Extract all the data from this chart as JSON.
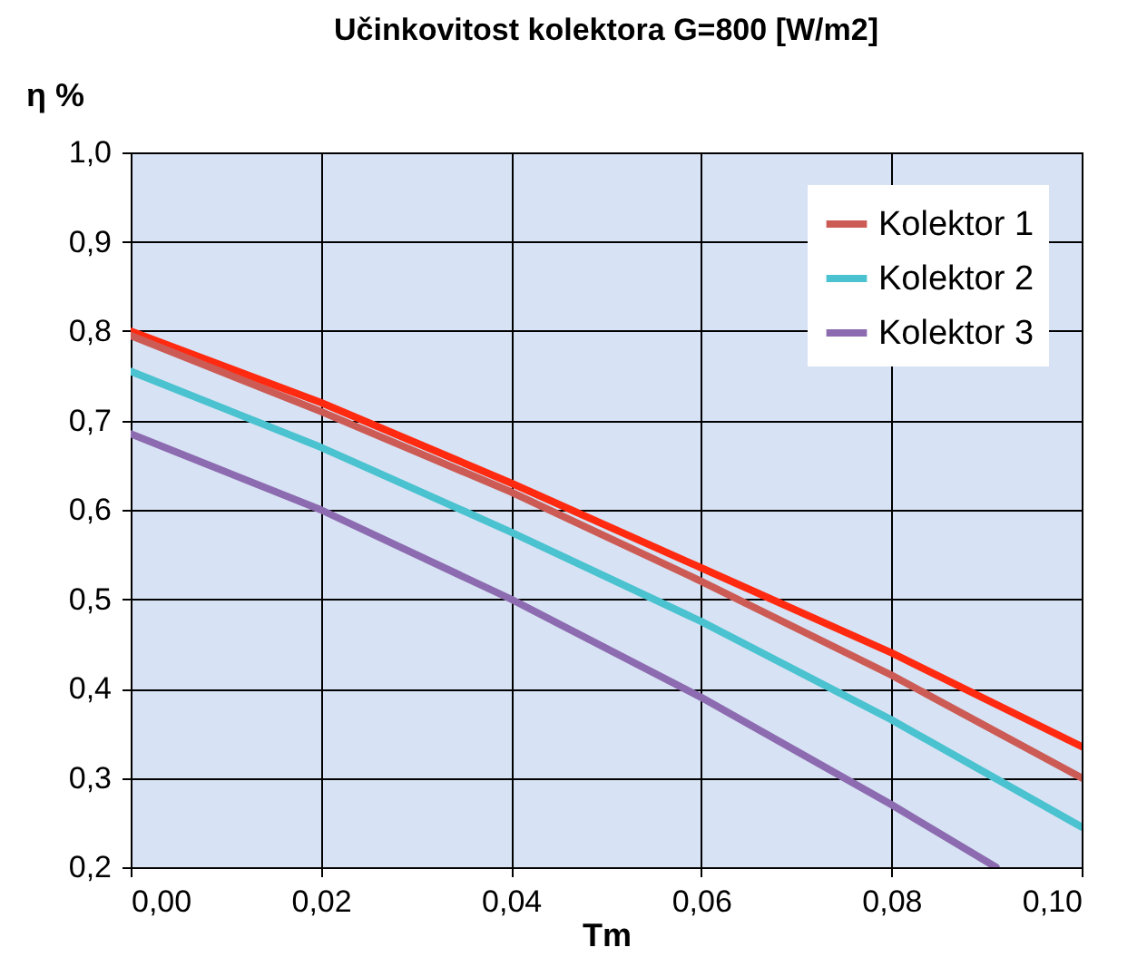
{
  "chart_data": {
    "type": "line",
    "title": "Učinkovitost kolektora G=800 [W/m2]",
    "xlabel": "Tm",
    "ylabel": "η %",
    "xlim": [
      0,
      0.1
    ],
    "xticks": [
      {
        "value": 0,
        "label": "0,00"
      },
      {
        "value": 0.02,
        "label": "0,02"
      },
      {
        "value": 0.04,
        "label": "0,04"
      },
      {
        "value": 0.06,
        "label": "0,06"
      },
      {
        "value": 0.08,
        "label": "0,08"
      },
      {
        "value": 0.1,
        "label": "0,10"
      }
    ],
    "ylim": [
      0.2,
      1
    ],
    "yticks": [
      {
        "value": 0.2,
        "label": "0,2"
      },
      {
        "value": 0.3,
        "label": "0,3"
      },
      {
        "value": 0.4,
        "label": "0,4"
      },
      {
        "value": 0.5,
        "label": "0,5"
      },
      {
        "value": 0.6,
        "label": "0,6"
      },
      {
        "value": 0.7,
        "label": "0,7"
      },
      {
        "value": 0.8,
        "label": "0,8"
      },
      {
        "value": 0.9,
        "label": "0,9"
      },
      {
        "value": 1,
        "label": "1,0"
      }
    ],
    "grid": true,
    "legend": "top right",
    "line_style": "solid",
    "x": [
      0,
      0.02,
      0.04,
      0.06,
      0.08,
      0.1
    ],
    "series": [
      {
        "color": "#ff2a10",
        "values": [
          0.8,
          0.72,
          0.63,
          0.535,
          0.44,
          0.335
        ]
      },
      {
        "name": "Kolektor 1",
        "color": "#cd5b55",
        "values": [
          0.795,
          0.71,
          0.62,
          0.52,
          0.415,
          0.3
        ]
      },
      {
        "name": "Kolektor 2",
        "color": "#4bc2cf",
        "values": [
          0.755,
          0.67,
          0.575,
          0.475,
          0.365,
          0.245
        ]
      },
      {
        "name": "Kolektor 3",
        "color": "#8d6bb0",
        "x": [
          0,
          0.02,
          0.04,
          0.06,
          0.08,
          0.091
        ],
        "values": [
          0.685,
          0.6,
          0.5,
          0.39,
          0.27,
          0.2
        ]
      }
    ]
  }
}
